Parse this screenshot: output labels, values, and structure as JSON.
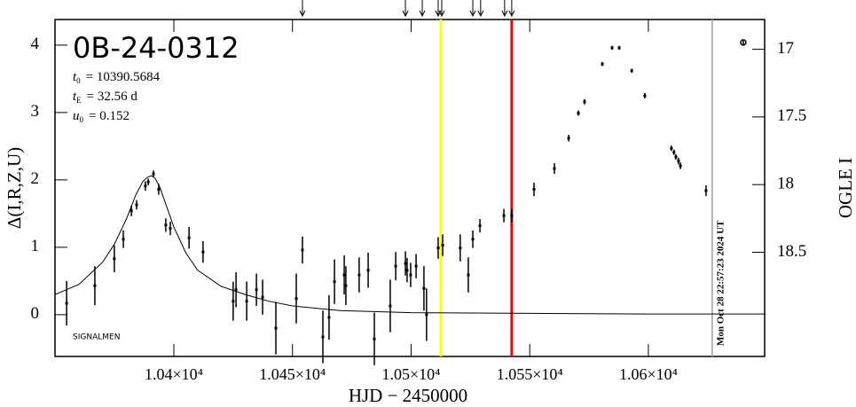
{
  "chart_data": {
    "type": "errorbar",
    "title": "0B-24-0312",
    "params": [
      {
        "symbol": "t",
        "sub": "0",
        "text": "= 10390.5684"
      },
      {
        "symbol": "t",
        "sub": "E",
        "text": "= 32.56 d"
      },
      {
        "symbol": "u",
        "sub": "0",
        "text": "= 0.152"
      }
    ],
    "corner_note": "SIGNALMEN",
    "x_label": "HJD − 2450000",
    "y_label": "Δ(I,R,Z,U)",
    "y2_label": "OGLE I",
    "xlim": [
      10349.9,
      10649
    ],
    "ylim": [
      -0.62,
      4.38
    ],
    "y2lim": [
      19.27,
      16.78
    ],
    "xticks": [
      {
        "value": 10400,
        "label": "1.04×10⁴"
      },
      {
        "value": 10450,
        "label": "1.045×10⁴"
      },
      {
        "value": 10500,
        "label": "1.05×10⁴"
      },
      {
        "value": 10550,
        "label": "1.055×10⁴"
      },
      {
        "value": 10600,
        "label": "1.06×10⁴"
      }
    ],
    "yticks": [
      0,
      1,
      2,
      3,
      4
    ],
    "y2ticks": [
      17,
      17.5,
      18,
      18.5
    ],
    "series": [
      {
        "marker": "dot",
        "color": "#000000",
        "x": [
          10354.8,
          10366.7,
          10374.9,
          10378.7,
          10382.1,
          10384.3,
          10388,
          10389.2,
          10391.4,
          10393.6,
          10396.6,
          10398.5,
          10406.4,
          10412.3,
          10425,
          10426.2,
          10430.7,
          10434.8,
          10437.4,
          10443,
          10451.6,
          10454.2,
          10462.8,
          10465.4,
          10467.7,
          10471.8,
          10472.5,
          10478.1,
          10481.9,
          10484.5,
          10491.2,
          10493.5,
          10497.6,
          10498.3,
          10499.8,
          10502.1,
          10505.4,
          10506.5,
          10511.4,
          10513.3,
          10520.7,
          10524.1,
          10526,
          10529,
          10539.1,
          10542.4,
          10551.8,
          10560.4,
          10566.4,
          10570.5,
          10573.1,
          10580.6,
          10584.7,
          10587.7,
          10593,
          10598.5,
          10609.7,
          10610.8,
          10611.6,
          10612.7,
          10613.5,
          10624.3
        ],
        "values": [
          0.17,
          0.43,
          0.83,
          1.12,
          1.54,
          1.63,
          1.91,
          1.97,
          2.09,
          1.86,
          1.33,
          1.28,
          1.14,
          0.93,
          0.2,
          0.37,
          0.2,
          0.37,
          0.26,
          -0.2,
          0.24,
          0.96,
          -0.33,
          -0.04,
          0.49,
          0.59,
          0.43,
          0.59,
          0.66,
          -0.36,
          0.13,
          0.72,
          0.76,
          0.66,
          0.59,
          0.72,
          0.39,
          0,
          0.99,
          1.03,
          0.99,
          0.59,
          1.12,
          1.32,
          1.47,
          1.47,
          1.86,
          2.17,
          2.62,
          2.99,
          3.16,
          3.72,
          3.96,
          3.96,
          3.62,
          3.25,
          2.47,
          2.41,
          2.34,
          2.28,
          2.21,
          1.84
        ],
        "errors": [
          0.33,
          0.29,
          0.2,
          0.13,
          0.08,
          0.07,
          0.07,
          0.05,
          0.05,
          0.08,
          0.1,
          0.1,
          0.16,
          0.16,
          0.29,
          0.26,
          0.29,
          0.24,
          0.26,
          0.39,
          0.37,
          0.2,
          0.39,
          0.33,
          0.33,
          0.29,
          0.29,
          0.26,
          0.26,
          0.39,
          0.39,
          0.21,
          0.18,
          0.18,
          0.18,
          0.18,
          0.33,
          0.39,
          0.16,
          0.16,
          0.2,
          0.26,
          0.13,
          0.1,
          0.1,
          0.1,
          0.1,
          0.08,
          0.05,
          0.04,
          0.04,
          0.03,
          0.03,
          0.03,
          0.03,
          0.04,
          0.04,
          0.04,
          0.04,
          0.05,
          0.05,
          0.08
        ]
      },
      {
        "marker": "open-circle",
        "color": "#000000",
        "x": [
          10640
        ],
        "values": [
          4.04
        ],
        "errors": [
          0.03
        ]
      }
    ],
    "model": {
      "color": "#000000",
      "x": [
        10350,
        10360,
        10370,
        10375,
        10380,
        10384,
        10387,
        10389,
        10390.5,
        10392,
        10394,
        10397,
        10400,
        10405,
        10410,
        10420,
        10430,
        10440,
        10450,
        10470,
        10500,
        10550,
        10600,
        10649
      ],
      "values": [
        0.3,
        0.45,
        0.78,
        1.05,
        1.42,
        1.78,
        1.98,
        2.04,
        2.06,
        2.03,
        1.9,
        1.6,
        1.3,
        0.92,
        0.66,
        0.42,
        0.3,
        0.2,
        0.13,
        0.06,
        0.03,
        0.02,
        0.01,
        0.01
      ]
    },
    "vlines": [
      {
        "x": 10512.5,
        "color": "#ffff00"
      },
      {
        "x": 10542.4,
        "color": "#ff0000"
      },
      {
        "x": 10626.9,
        "color": "#999999",
        "label": "Mon Oct 28 22:57:23 2024 UT"
      }
    ],
    "arrows_x": [
      10454.2,
      10497.6,
      10504.7,
      10511.4,
      10512.9,
      10526,
      10529.3,
      10539.4,
      10542.4
    ]
  }
}
